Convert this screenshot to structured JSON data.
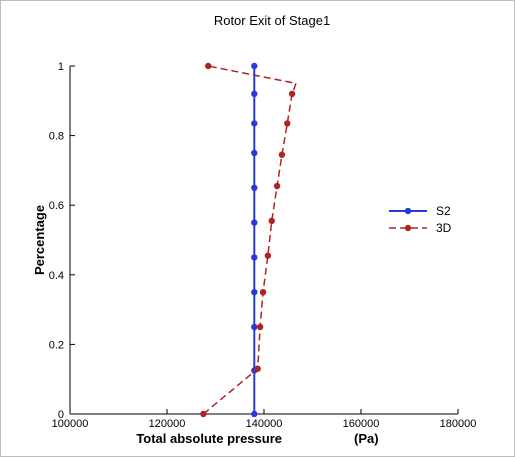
{
  "chart_data": {
    "type": "line",
    "title": "Rotor Exit of Stage1",
    "xlabel": "Total absolute pressure",
    "xlabel_unit": "(Pa)",
    "ylabel": "Percentage",
    "xlim": [
      100000,
      180000
    ],
    "ylim": [
      0,
      1
    ],
    "xticks": [
      "100000",
      "120000",
      "140000",
      "160000",
      "180000"
    ],
    "yticks": [
      "0",
      "0.2",
      "0.4",
      "0.6",
      "0.8",
      "1"
    ],
    "grid": false,
    "legend_position": "right",
    "series": [
      {
        "name": "S2",
        "color": "#2a3ad8",
        "line_style": "solid",
        "marker": "circle",
        "points": [
          [
            138000,
            0
          ],
          [
            138000,
            0.125
          ],
          [
            138000,
            0.25
          ],
          [
            138000,
            0.35
          ],
          [
            138000,
            0.45
          ],
          [
            138000,
            0.55
          ],
          [
            138000,
            0.65
          ],
          [
            138000,
            0.75
          ],
          [
            138000,
            0.835
          ],
          [
            138000,
            0.92
          ],
          [
            138000,
            1.0
          ]
        ]
      },
      {
        "name": "3D",
        "color": "#b22222",
        "line_style": "dashed",
        "marker": "circle",
        "points": [
          [
            127500,
            0
          ],
          [
            138700,
            0.13
          ],
          [
            139200,
            0.25
          ],
          [
            139800,
            0.35
          ],
          [
            140800,
            0.455
          ],
          [
            141600,
            0.555
          ],
          [
            142700,
            0.655
          ],
          [
            143700,
            0.745
          ],
          [
            144800,
            0.835
          ],
          [
            145800,
            0.92
          ],
          [
            146600,
            0.95
          ],
          [
            128500,
            1.0
          ]
        ]
      }
    ]
  }
}
